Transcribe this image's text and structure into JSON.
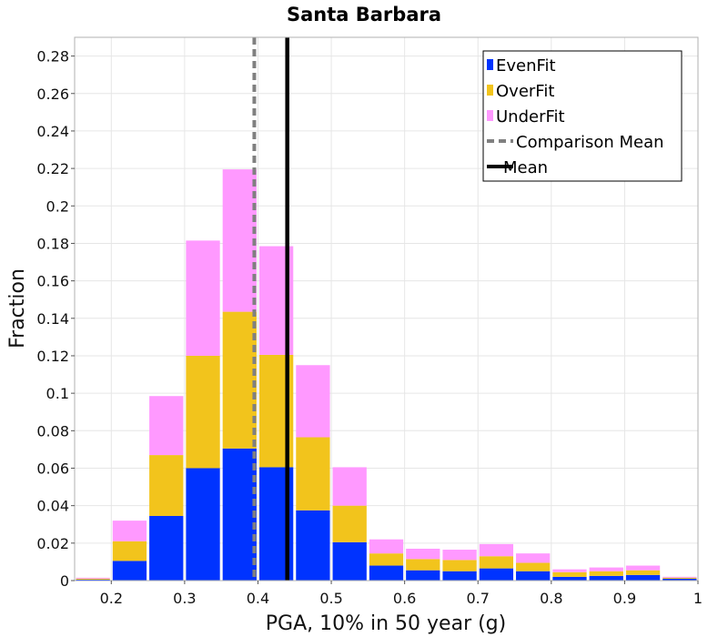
{
  "chart_data": {
    "type": "bar",
    "stacked": true,
    "title": "Santa Barbara",
    "xlabel": "PGA, 10% in 50 year (g)",
    "ylabel": "Fraction",
    "xlim": [
      0.15,
      1.0
    ],
    "ylim": [
      0,
      0.29
    ],
    "x_ticks": [
      "0.2",
      "0.3",
      "0.4",
      "0.5",
      "0.6",
      "0.7",
      "0.8",
      "0.9",
      "1"
    ],
    "y_ticks": [
      "0",
      "0.02",
      "0.04",
      "0.06",
      "0.08",
      "0.1",
      "0.12",
      "0.14",
      "0.16",
      "0.18",
      "0.2",
      "0.22",
      "0.24",
      "0.26",
      "0.28"
    ],
    "grid": true,
    "legend_position": "top-right",
    "bin_width": 0.05,
    "x": [
      0.175,
      0.225,
      0.275,
      0.325,
      0.375,
      0.425,
      0.475,
      0.525,
      0.575,
      0.625,
      0.675,
      0.725,
      0.775,
      0.825,
      0.875,
      0.925,
      0.975
    ],
    "series": [
      {
        "name": "EvenFit",
        "color": "#0033ff",
        "values": [
          0.0005,
          0.0105,
          0.0345,
          0.06,
          0.0705,
          0.0605,
          0.0375,
          0.0205,
          0.008,
          0.0055,
          0.005,
          0.0065,
          0.005,
          0.002,
          0.0025,
          0.003,
          0.001
        ]
      },
      {
        "name": "OverFit",
        "color": "#f2c41c",
        "values": [
          0.0005,
          0.0105,
          0.0325,
          0.06,
          0.073,
          0.06,
          0.039,
          0.0195,
          0.0065,
          0.006,
          0.006,
          0.0065,
          0.0045,
          0.0025,
          0.0025,
          0.0025,
          0.0005
        ]
      },
      {
        "name": "UnderFit",
        "color": "#ff99ff",
        "values": [
          0.0005,
          0.011,
          0.0315,
          0.0615,
          0.076,
          0.058,
          0.0385,
          0.0205,
          0.0075,
          0.0055,
          0.0055,
          0.0065,
          0.005,
          0.0015,
          0.002,
          0.0025,
          0.0005
        ]
      }
    ],
    "reference_lines": [
      {
        "name": "Comparison Mean",
        "x": 0.395,
        "style": "dashed",
        "color": "#808080"
      },
      {
        "name": "Mean",
        "x": 0.44,
        "style": "solid",
        "color": "#000000"
      }
    ]
  }
}
